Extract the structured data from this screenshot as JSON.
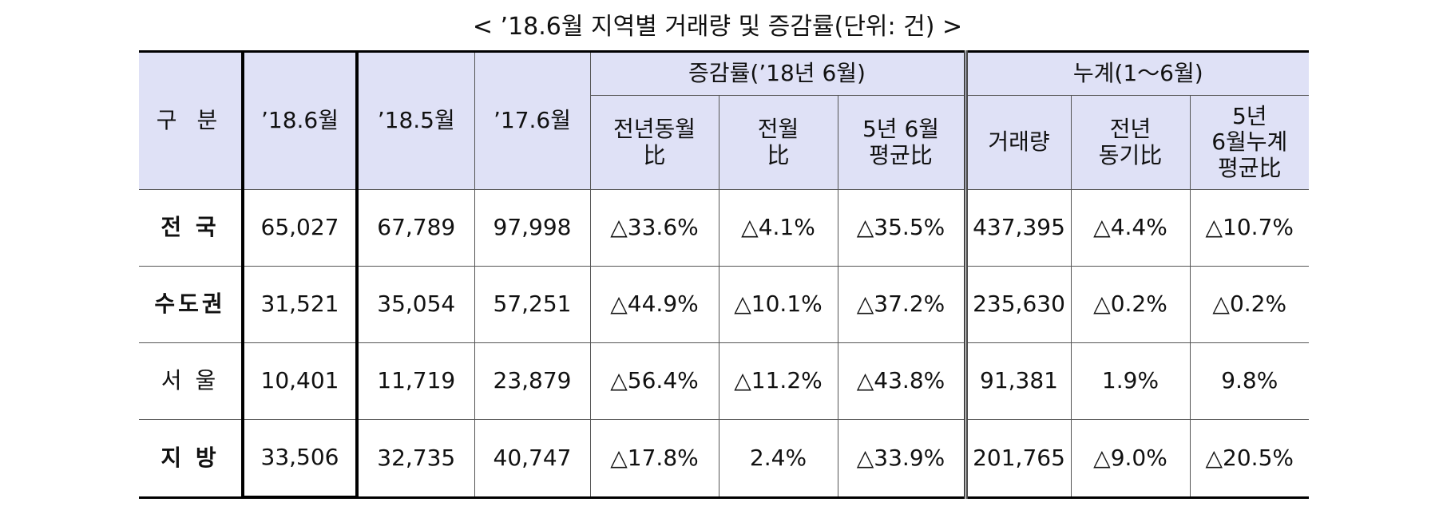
{
  "title": "< ’18.6월 지역별 거래량 및 증감률(단위: 건) >",
  "table": {
    "header": {
      "category": "구 분",
      "columns": [
        "’18.6월",
        "’18.5월",
        "’17.6월"
      ],
      "groups": [
        {
          "title": "증감률(’18년 6월)",
          "columns": [
            [
              "전년동월",
              "比"
            ],
            [
              "전월",
              "比"
            ],
            [
              "5년 6월",
              "평균比"
            ]
          ]
        },
        {
          "title": "누계(1～6월)",
          "columns": [
            [
              "거래량"
            ],
            [
              "전년",
              "동기比"
            ],
            [
              "5년",
              "6월누계",
              "평균比"
            ]
          ]
        }
      ]
    },
    "rows": [
      [
        "전 국",
        "65,027",
        "67,789",
        "97,998",
        "△33.6%",
        "△4.1%",
        "△35.5%",
        "437,395",
        "△4.4%",
        "△10.7%"
      ],
      [
        "수도권",
        "31,521",
        "35,054",
        "57,251",
        "△44.9%",
        "△10.1%",
        "△37.2%",
        "235,630",
        "△0.2%",
        "△0.2%"
      ],
      [
        "서 울",
        "10,401",
        "11,719",
        "23,879",
        "△56.4%",
        "△11.2%",
        "△43.8%",
        "91,381",
        "1.9%",
        "9.8%"
      ],
      [
        "지 방",
        "33,506",
        "32,735",
        "40,747",
        "△17.8%",
        "2.4%",
        "△33.9%",
        "201,765",
        "△9.0%",
        "△20.5%"
      ]
    ]
  }
}
